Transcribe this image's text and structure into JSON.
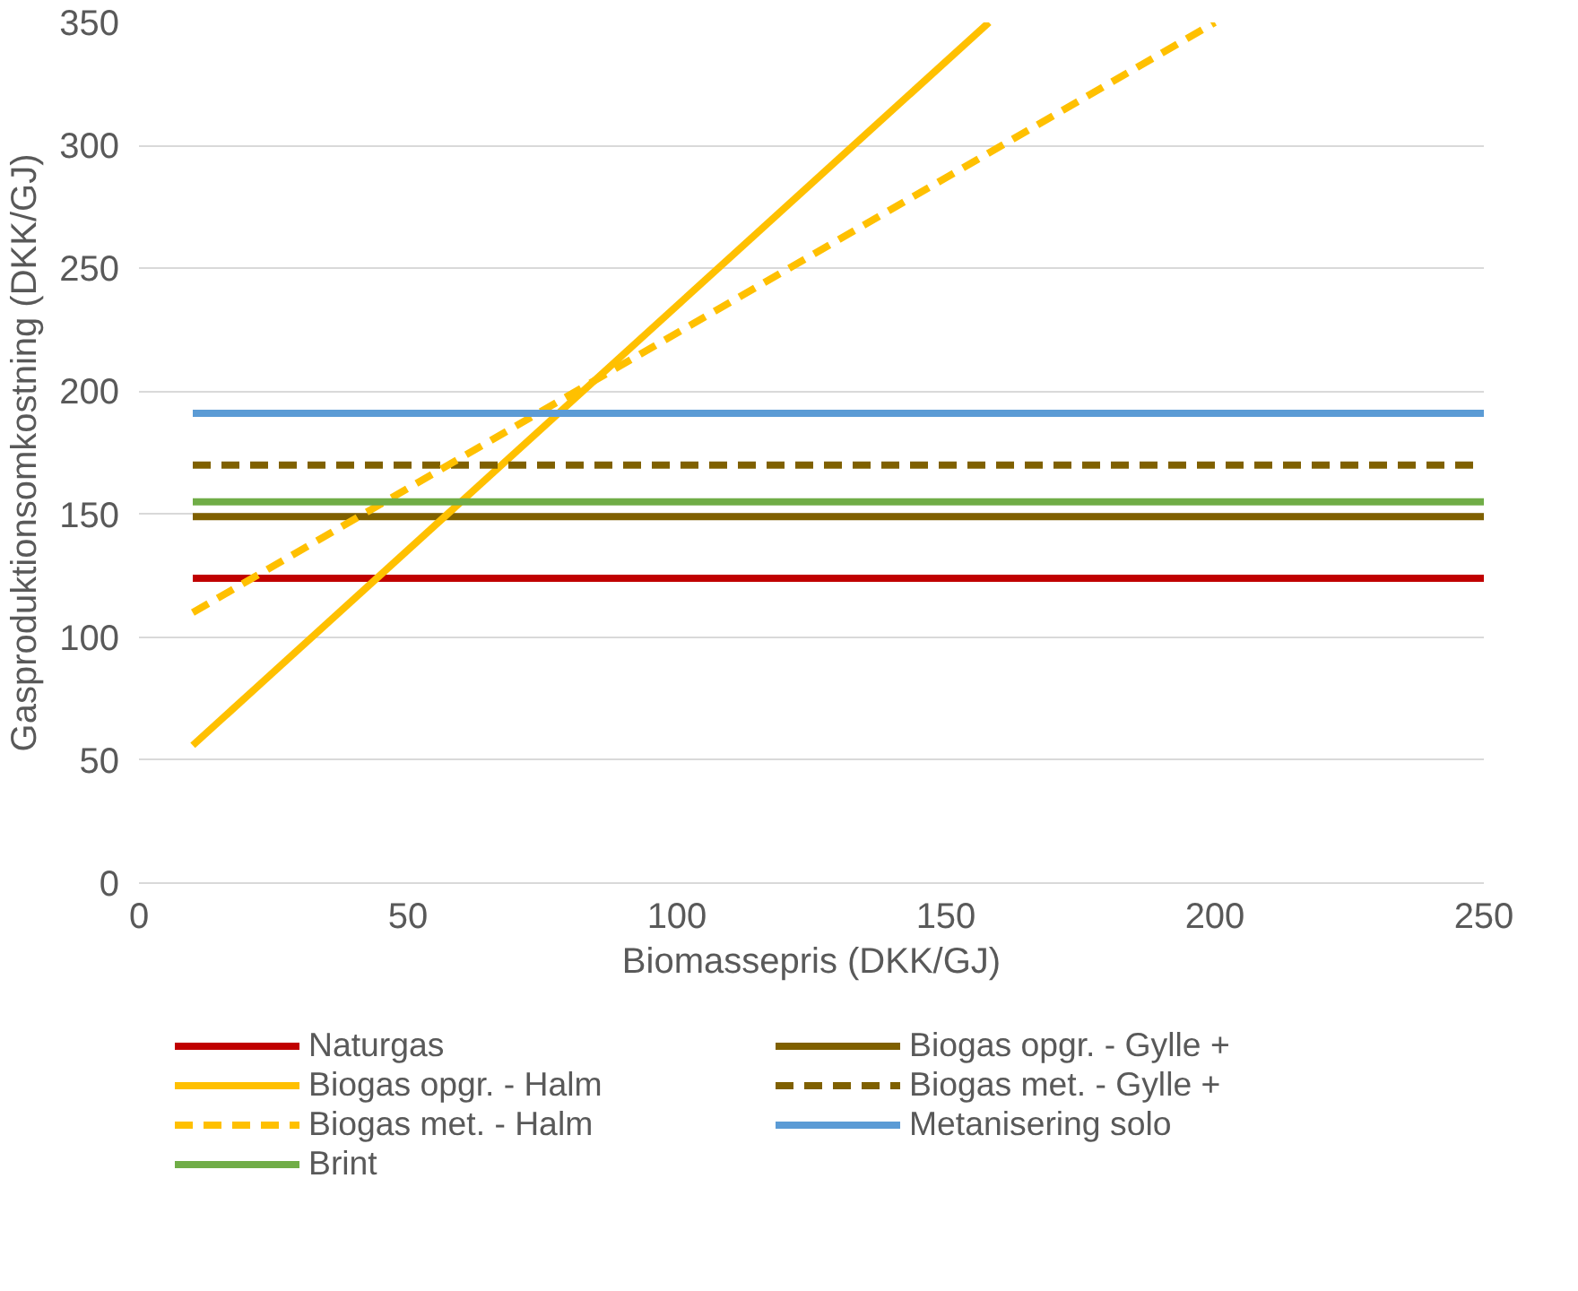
{
  "chart_data": {
    "type": "line",
    "xlabel": "Biomassepris (DKK/GJ)",
    "ylabel": "Gasproduktionsomkostning (DKK/GJ)",
    "xlim": [
      0,
      250
    ],
    "xticks": [
      0,
      50,
      100,
      150,
      200,
      250
    ],
    "ylim": [
      0,
      350
    ],
    "yticks": [
      0,
      50,
      100,
      150,
      200,
      250,
      300,
      350
    ],
    "grid": "y",
    "legend": "bottom",
    "marker": "none",
    "series": [
      {
        "name": "Naturgas",
        "color": "#c00000",
        "x": [
          10,
          250
        ],
        "values": [
          124,
          124
        ]
      },
      {
        "name": "Biogas opgr. - Gylle +",
        "color": "#7f6000",
        "x": [
          10,
          250
        ],
        "values": [
          149,
          149
        ]
      },
      {
        "name": "Biogas opgr. - Halm",
        "color": "#ffc000",
        "x": [
          10,
          158
        ],
        "values": [
          56,
          350
        ]
      },
      {
        "name": "Biogas met. - Gylle +",
        "color": "#7f6000",
        "line_style": "dashed",
        "x": [
          10,
          250
        ],
        "values": [
          170,
          170
        ]
      },
      {
        "name": "Biogas met. - Halm",
        "color": "#ffc000",
        "line_style": "dashed",
        "x": [
          10,
          200
        ],
        "values": [
          110,
          350
        ]
      },
      {
        "name": "Metanisering solo",
        "color": "#5b9bd5",
        "x": [
          10,
          250
        ],
        "values": [
          191,
          191
        ]
      },
      {
        "name": "Brint",
        "color": "#70ad47",
        "x": [
          10,
          250
        ],
        "values": [
          155,
          155
        ]
      }
    ]
  }
}
